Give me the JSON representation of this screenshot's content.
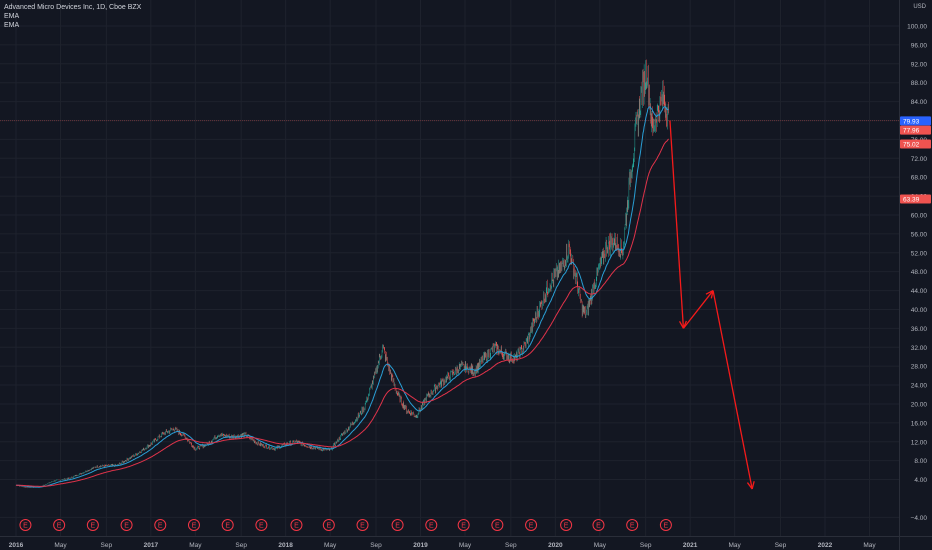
{
  "header": {
    "symbol": "Advanced Micro Devices Inc, 1D, Cboe BZX",
    "indicator_1": "EMA",
    "indicator_2": "EMA",
    "currency": "USD"
  },
  "colors": {
    "background": "#131722",
    "grid": "#1e222d",
    "axis_text": "#b2b5be",
    "candle_up": "#26a69a",
    "candle_down": "#ef5350",
    "ema_fast": "#2a9fd6",
    "ema_slow": "#e0334a",
    "projection": "#f51a1a",
    "earnings": "#f23645"
  },
  "chart_data": {
    "type": "candlestick",
    "title": "Advanced Micro Devices Inc, 1D, Cboe BZX",
    "y_axis_side": "right",
    "ylim": [
      -4,
      104
    ],
    "y_ticks": [
      100,
      96,
      92,
      88,
      84,
      80,
      76,
      72,
      68,
      64,
      60,
      56,
      52,
      48,
      44,
      40,
      36,
      32,
      28,
      24,
      20,
      16,
      12,
      8,
      4,
      -4
    ],
    "y_tick_labels": [
      "100.00",
      "96.00",
      "92.00",
      "88.00",
      "84.00",
      "80.00",
      "76.00",
      "72.00",
      "68.00",
      "64.00",
      "60.00",
      "56.00",
      "52.00",
      "48.00",
      "44.00",
      "40.00",
      "36.00",
      "32.00",
      "28.00",
      "24.00",
      "20.00",
      "16.00",
      "12.00",
      "8.00",
      "4.00",
      "−4.00"
    ],
    "xlim": [
      2016.0,
      2022.6
    ],
    "x_ticks": [
      2016.0,
      2016.33,
      2016.67,
      2017.0,
      2017.33,
      2017.67,
      2018.0,
      2018.33,
      2018.67,
      2019.0,
      2019.33,
      2019.67,
      2020.0,
      2020.33,
      2020.67,
      2021.0,
      2021.33,
      2021.67,
      2022.0,
      2022.33
    ],
    "x_tick_labels": [
      "2016",
      "May",
      "Sep",
      "2017",
      "May",
      "Sep",
      "2018",
      "May",
      "Sep",
      "2019",
      "May",
      "Sep",
      "2020",
      "May",
      "Sep",
      "2021",
      "May",
      "Sep",
      "2022",
      "May"
    ],
    "x_tick_bold": [
      "2016",
      "2017",
      "2018",
      "2019",
      "2020",
      "2021",
      "2022"
    ],
    "price_key_points": [
      [
        2016.0,
        2.8
      ],
      [
        2016.08,
        2.3
      ],
      [
        2016.17,
        2.4
      ],
      [
        2016.28,
        3.7
      ],
      [
        2016.4,
        4.3
      ],
      [
        2016.5,
        5.5
      ],
      [
        2016.6,
        6.8
      ],
      [
        2016.75,
        7.0
      ],
      [
        2016.9,
        9.5
      ],
      [
        2017.0,
        11.5
      ],
      [
        2017.08,
        13.5
      ],
      [
        2017.17,
        14.8
      ],
      [
        2017.25,
        13.2
      ],
      [
        2017.33,
        10.5
      ],
      [
        2017.42,
        11.5
      ],
      [
        2017.5,
        13.5
      ],
      [
        2017.6,
        13.0
      ],
      [
        2017.7,
        13.5
      ],
      [
        2017.8,
        11.5
      ],
      [
        2017.92,
        10.5
      ],
      [
        2018.0,
        11.5
      ],
      [
        2018.08,
        12.0
      ],
      [
        2018.17,
        11.0
      ],
      [
        2018.25,
        10.5
      ],
      [
        2018.33,
        10.2
      ],
      [
        2018.42,
        13.5
      ],
      [
        2018.5,
        16.0
      ],
      [
        2018.58,
        19.0
      ],
      [
        2018.66,
        26.0
      ],
      [
        2018.72,
        32.0
      ],
      [
        2018.77,
        27.0
      ],
      [
        2018.83,
        22.0
      ],
      [
        2018.9,
        18.5
      ],
      [
        2018.97,
        17.5
      ],
      [
        2019.05,
        21.5
      ],
      [
        2019.13,
        24.0
      ],
      [
        2019.2,
        25.5
      ],
      [
        2019.3,
        28.0
      ],
      [
        2019.4,
        27.0
      ],
      [
        2019.47,
        29.5
      ],
      [
        2019.55,
        32.0
      ],
      [
        2019.62,
        30.5
      ],
      [
        2019.7,
        29.5
      ],
      [
        2019.78,
        32.5
      ],
      [
        2019.85,
        38.0
      ],
      [
        2019.95,
        45.0
      ],
      [
        2020.05,
        49.0
      ],
      [
        2020.1,
        53.0
      ],
      [
        2020.15,
        47.0
      ],
      [
        2020.2,
        40.0
      ],
      [
        2020.23,
        39.0
      ],
      [
        2020.3,
        46.5
      ],
      [
        2020.38,
        53.5
      ],
      [
        2020.44,
        54.5
      ],
      [
        2020.5,
        52.5
      ],
      [
        2020.55,
        67.0
      ],
      [
        2020.6,
        78.0
      ],
      [
        2020.64,
        86.0
      ],
      [
        2020.68,
        90.5
      ],
      [
        2020.72,
        78.0
      ],
      [
        2020.76,
        82.0
      ],
      [
        2020.8,
        85.0
      ],
      [
        2020.84,
        81.0
      ]
    ],
    "series": [
      {
        "name": "AMD",
        "style": "candles"
      },
      {
        "name": "EMA",
        "color": "#2a9fd6",
        "style": "line",
        "role": "fast"
      },
      {
        "name": "EMA",
        "color": "#e0334a",
        "style": "line",
        "role": "slow"
      }
    ],
    "price_labels": [
      {
        "value": 79.93,
        "text": "79.93",
        "color": "#2962ff"
      },
      {
        "value": 77.96,
        "text": "77.96",
        "color": "#ef5350"
      },
      {
        "value": 75.02,
        "text": "75.02",
        "color": "#ef5350"
      },
      {
        "value": 63.39,
        "text": "63.39",
        "color": "#ef5350"
      }
    ],
    "current_price_line": 79.93,
    "projection_path": [
      [
        2020.85,
        80.0
      ],
      [
        2020.95,
        36.0
      ],
      [
        2021.17,
        44.0
      ],
      [
        2021.46,
        2.0
      ]
    ],
    "earnings_markers": {
      "label": "E",
      "x": [
        2016.07,
        2016.32,
        2016.57,
        2016.82,
        2017.07,
        2017.32,
        2017.57,
        2017.82,
        2018.08,
        2018.32,
        2018.57,
        2018.83,
        2019.08,
        2019.32,
        2019.57,
        2019.82,
        2020.08,
        2020.32,
        2020.57,
        2020.82
      ]
    },
    "grid": true,
    "legend": "top-left"
  }
}
